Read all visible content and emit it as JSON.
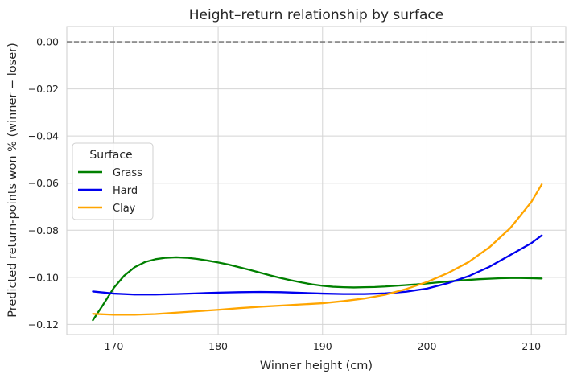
{
  "chart_data": {
    "type": "line",
    "title": "Height–return relationship by surface",
    "xlabel": "Winner height (cm)",
    "ylabel": "Predicted return-points won % (winner − loser)",
    "xlim": [
      165.5,
      213.3
    ],
    "ylim": [
      -0.1243,
      0.0065
    ],
    "x_ticks": [
      170,
      180,
      190,
      200,
      210
    ],
    "x_tick_labels": [
      "170",
      "180",
      "190",
      "200",
      "210"
    ],
    "y_ticks": [
      0.0,
      -0.02,
      -0.04,
      -0.06,
      -0.08,
      -0.1,
      -0.12
    ],
    "y_tick_labels": [
      "0.00",
      "−0.02",
      "−0.04",
      "−0.06",
      "−0.08",
      "−0.10",
      "−0.12"
    ],
    "grid": true,
    "reference_line": {
      "y": 0.0,
      "style": "dashed",
      "color": "#808080"
    },
    "legend": {
      "title": "Surface",
      "placement": "center-left"
    },
    "series": [
      {
        "name": "Grass",
        "color": "#008000",
        "x": [
          168,
          169,
          170,
          171,
          172,
          173,
          174,
          175,
          176,
          177,
          178,
          179,
          180,
          181,
          182,
          183,
          184,
          185,
          186,
          187,
          188,
          189,
          190,
          191,
          192,
          193,
          194,
          195,
          196,
          197,
          198,
          199,
          200,
          201,
          202,
          203,
          204,
          205,
          206,
          207,
          208,
          209,
          210,
          211
        ],
        "y": [
          -0.1182,
          -0.1115,
          -0.1045,
          -0.0993,
          -0.0957,
          -0.0935,
          -0.0923,
          -0.0917,
          -0.0915,
          -0.0917,
          -0.0922,
          -0.0929,
          -0.0937,
          -0.0946,
          -0.0957,
          -0.0968,
          -0.098,
          -0.0992,
          -0.1003,
          -0.1013,
          -0.1022,
          -0.103,
          -0.1036,
          -0.104,
          -0.1042,
          -0.1043,
          -0.1042,
          -0.1041,
          -0.1039,
          -0.1036,
          -0.1033,
          -0.103,
          -0.1026,
          -0.1022,
          -0.1018,
          -0.1014,
          -0.1011,
          -0.1008,
          -0.1006,
          -0.1004,
          -0.1003,
          -0.1003,
          -0.1004,
          -0.1005
        ]
      },
      {
        "name": "Hard",
        "color": "#0000ee",
        "x": [
          168,
          170,
          172,
          174,
          176,
          178,
          180,
          182,
          184,
          186,
          188,
          190,
          192,
          194,
          196,
          198,
          200,
          202,
          204,
          206,
          208,
          210,
          211
        ],
        "y": [
          -0.106,
          -0.1069,
          -0.1073,
          -0.1073,
          -0.1071,
          -0.1068,
          -0.1065,
          -0.1063,
          -0.1062,
          -0.1063,
          -0.1066,
          -0.1069,
          -0.1071,
          -0.1071,
          -0.1068,
          -0.1061,
          -0.1048,
          -0.1025,
          -0.0995,
          -0.0955,
          -0.0905,
          -0.0855,
          -0.0822
        ]
      },
      {
        "name": "Clay",
        "color": "#ffa500",
        "x": [
          168,
          170,
          172,
          174,
          176,
          178,
          180,
          182,
          184,
          186,
          188,
          190,
          192,
          194,
          196,
          198,
          200,
          202,
          204,
          206,
          208,
          210,
          211
        ],
        "y": [
          -0.1155,
          -0.1159,
          -0.1159,
          -0.1156,
          -0.115,
          -0.1144,
          -0.1138,
          -0.1131,
          -0.1125,
          -0.112,
          -0.1115,
          -0.111,
          -0.1101,
          -0.109,
          -0.1074,
          -0.105,
          -0.102,
          -0.0982,
          -0.0935,
          -0.0872,
          -0.079,
          -0.068,
          -0.0605
        ]
      }
    ]
  }
}
